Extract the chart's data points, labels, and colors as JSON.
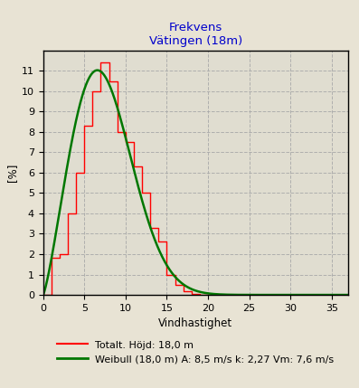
{
  "title_line1": "Frekvens",
  "title_line2": "Vätingen (18m)",
  "title_color": "#0000cc",
  "xlabel": "Vindhastighet",
  "ylabel": "[%]",
  "background_color": "#e8e3d4",
  "plot_bg_color": "#e0ddd0",
  "grid_color": "#aaaaaa",
  "xlim": [
    0,
    37
  ],
  "ylim": [
    0,
    12
  ],
  "xticks": [
    0,
    5,
    10,
    15,
    20,
    25,
    30,
    35
  ],
  "yticks": [
    0,
    1,
    2,
    3,
    4,
    5,
    6,
    7,
    8,
    9,
    10,
    11
  ],
  "hist_color": "#ff0000",
  "weibull_color": "#007700",
  "hist_edges": [
    0,
    1,
    2,
    3,
    4,
    5,
    6,
    7,
    8,
    9,
    10,
    11,
    12,
    13,
    14,
    15,
    16,
    17,
    18,
    19,
    20,
    21
  ],
  "hist_values": [
    0.0,
    1.8,
    2.0,
    4.0,
    6.0,
    8.3,
    10.0,
    11.4,
    10.5,
    8.0,
    7.5,
    6.3,
    5.0,
    3.3,
    2.6,
    1.0,
    0.5,
    0.2,
    0.05,
    0.0,
    0.0
  ],
  "weibull_A": 8.5,
  "weibull_k": 2.27,
  "legend_label1": "Totalt. Höjd: 18,0 m",
  "legend_label2": "Weibull (18,0 m) A: 8,5 m/s k: 2,27 Vm: 7,6 m/s",
  "legend_fontsize": 8.0,
  "title_fontsize": 9.5,
  "axis_fontsize": 8.5,
  "tick_fontsize": 8.0,
  "figsize": [
    3.97,
    4.29
  ],
  "dpi": 100
}
